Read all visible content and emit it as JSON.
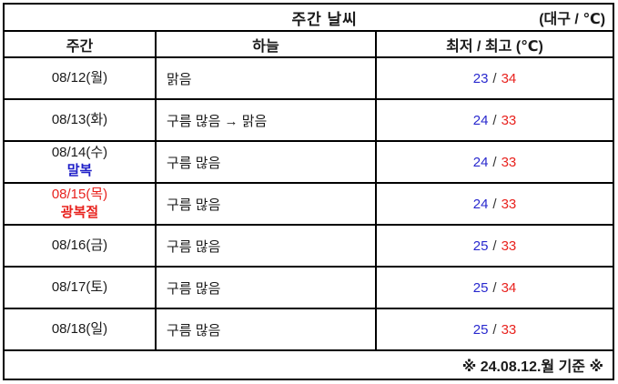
{
  "header": {
    "title": "주간 날씨",
    "region_unit": "(대구 / ℃)"
  },
  "columns": {
    "week": "주간",
    "sky": "하늘",
    "temp": "최저 / 최고 (℃)"
  },
  "separator": "/",
  "rows": [
    {
      "date": "08/12(월)",
      "sky": "맑음",
      "low": "23",
      "high": "34"
    },
    {
      "date": "08/13(화)",
      "sky": "구름 많음 → 맑음",
      "low": "24",
      "high": "33"
    },
    {
      "date": "08/14(수)",
      "holiday": "말복",
      "sky": "구름 많음",
      "low": "24",
      "high": "33"
    },
    {
      "date": "08/15(목)",
      "holiday": "광복절",
      "sky": "구름 많음",
      "low": "24",
      "high": "33"
    },
    {
      "date": "08/16(금)",
      "sky": "구름 많음",
      "low": "25",
      "high": "33"
    },
    {
      "date": "08/17(토)",
      "sky": "구름 많음",
      "low": "25",
      "high": "34"
    },
    {
      "date": "08/18(일)",
      "sky": "구름 많음",
      "low": "25",
      "high": "33"
    }
  ],
  "footer": {
    "note": "※ 24.08.12.월 기준 ※"
  },
  "colors": {
    "low_temp": "#2828CE",
    "high_temp": "#E8221E",
    "holiday_malbok": "#2020C8",
    "holiday_gwangbokjeol": "#E8221E",
    "date_red": "#E8221E",
    "border": "#000000",
    "text": "#1A1A1A"
  }
}
